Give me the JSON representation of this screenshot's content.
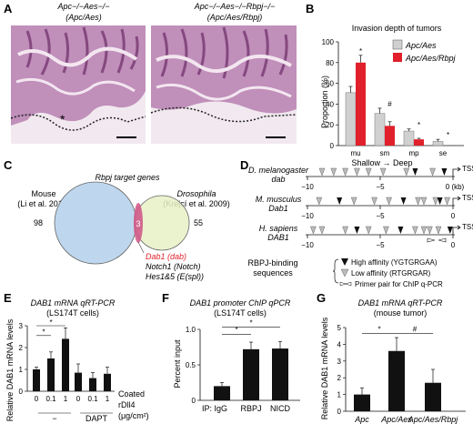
{
  "panels": {
    "A": {
      "letter": "A",
      "left_title_1": "Apc−/−Aes−/−",
      "left_title_2": "(Apc/Aes)",
      "right_title_1": "Apc−/−Aes−/−Rbpj−/−",
      "right_title_2": "(Apc/Aes/Rbpj)",
      "asterisk": "*"
    },
    "B": {
      "letter": "B",
      "title": "Invasion depth of tumors",
      "ylabel": "Proportion (%)",
      "xlabel": "Shallow → Deep",
      "legend": [
        "Apc/Aes",
        "Apc/Aes/Rbpj"
      ],
      "colors": {
        "apc_aes": "#d0d0d0",
        "apc_aes_rbpj": "#e0202a"
      }
    },
    "C": {
      "letter": "C",
      "title": "Rbpj target genes",
      "left_label_1": "Mouse",
      "left_label_2": "(Li et al. 2012)",
      "right_label_1": "Drosophila",
      "right_label_2": "(Krejcí et al. 2009)",
      "left_count": "98",
      "overlap_count": "3",
      "right_count": "55",
      "genes": [
        "Dab1 (dab)",
        "Notch1 (Notch)",
        "Hes1&5 (E(spl))"
      ]
    },
    "D": {
      "letter": "D",
      "species": [
        {
          "name": "D. melanogaster",
          "gene": "dab"
        },
        {
          "name": "M. musculus",
          "gene": "Dab1"
        },
        {
          "name": "H. sapiens",
          "gene": "DAB1"
        }
      ],
      "ticks": [
        "−10",
        "−5",
        "0 (kb)"
      ],
      "ticks_short": [
        "−10",
        "−5",
        "0"
      ],
      "tss": "TSS",
      "legend_title_1": "RBPJ-binding",
      "legend_title_2": "sequences",
      "legend_items": [
        "High affinity (YGTGRGAA)",
        "Low affinity (RTGRGAR)",
        "Primer pair for ChIP q-PCR"
      ]
    },
    "E": {
      "letter": "E",
      "title_1": "DAB1 mRNA qRT-PCR",
      "title_2": "(LS174T cells)",
      "ylabel": "Relative DAB1 mRNA levels",
      "x_ticks": [
        "0",
        "0.1",
        "1",
        "0",
        "0.1",
        "1"
      ],
      "groups": [
        "−",
        "DAPT"
      ],
      "coated_1": "Coated",
      "coated_2": "rDll4",
      "coated_3": "(μg/cm²)"
    },
    "F": {
      "letter": "F",
      "title_1": "DAB1 promoter ChIP qPCR",
      "title_2": "(LS174T cells)",
      "ylabel": "Percent input",
      "ip_label": "IP: IgG",
      "categories": [
        "IgG",
        "RBPJ",
        "NICD"
      ]
    },
    "G": {
      "letter": "G",
      "title_1": "DAB1 mRNA qRT-PCR",
      "title_2": "(mouse tumor)",
      "ylabel": "Relative DAB1 mRNA levels",
      "categories": [
        "Apc",
        "Apc/Aes",
        "Apc/Aes/Rbpj"
      ]
    }
  },
  "chart_data": [
    {
      "panel": "B",
      "type": "bar",
      "title": "Invasion depth of tumors",
      "xlabel": "Shallow → Deep",
      "ylabel": "Proportion (%)",
      "categories": [
        "mu",
        "sm",
        "mp",
        "se"
      ],
      "series": [
        {
          "name": "Apc/Aes",
          "values": [
            51,
            31,
            14,
            4
          ],
          "errors": [
            6,
            5,
            2,
            2
          ]
        },
        {
          "name": "Apc/Aes/Rbpj",
          "values": [
            80,
            19,
            6,
            0
          ],
          "errors": [
            7,
            4,
            1,
            0
          ]
        }
      ],
      "ylim": [
        0,
        100
      ],
      "yticks": [
        0,
        20,
        40,
        60,
        80,
        100
      ],
      "annotations": [
        "*",
        "#",
        "*",
        "*"
      ]
    },
    {
      "panel": "E",
      "type": "bar",
      "ylabel": "Relative DAB1 mRNA levels",
      "categories": [
        "0",
        "0.1",
        "1",
        "0",
        "0.1",
        "1"
      ],
      "values": [
        1.0,
        1.5,
        2.4,
        0.85,
        0.6,
        0.8
      ],
      "errors": [
        0.1,
        0.3,
        0.5,
        0.4,
        0.25,
        0.3
      ],
      "ylim": [
        0,
        3
      ],
      "yticks": [
        0,
        1,
        2,
        3
      ],
      "significance": [
        "*",
        "*"
      ]
    },
    {
      "panel": "F",
      "type": "bar",
      "ylabel": "Percent input",
      "categories": [
        "IgG",
        "RBPJ",
        "NICD"
      ],
      "values": [
        0.2,
        0.72,
        0.73
      ],
      "errors": [
        0.05,
        0.1,
        0.1
      ],
      "ylim": [
        0,
        1.0
      ],
      "yticks": [
        0,
        0.5,
        1.0
      ],
      "significance": [
        "*",
        "*"
      ]
    },
    {
      "panel": "G",
      "type": "bar",
      "ylabel": "Relative DAB1 mRNA levels",
      "categories": [
        "Apc",
        "Apc/Aes",
        "Apc/Aes/Rbpj"
      ],
      "values": [
        1.0,
        3.6,
        1.7
      ],
      "errors": [
        0.4,
        0.8,
        0.8
      ],
      "ylim": [
        0,
        5
      ],
      "yticks": [
        0,
        1,
        2,
        3,
        4,
        5
      ],
      "significance": [
        "*",
        "#"
      ]
    }
  ]
}
